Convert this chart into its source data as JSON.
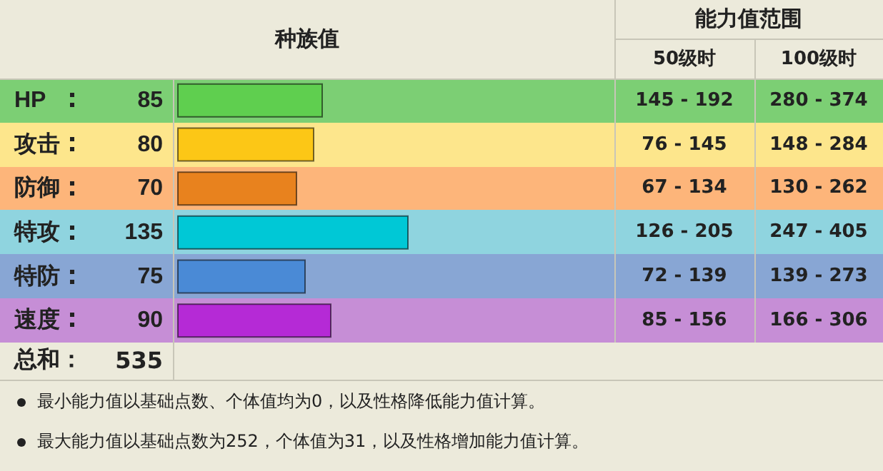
{
  "chart_data": {
    "type": "bar",
    "orientation": "horizontal",
    "title": "种族值",
    "categories": [
      "HP",
      "攻击",
      "防御",
      "特攻",
      "特防",
      "速度"
    ],
    "values": [
      85,
      80,
      70,
      135,
      75,
      90
    ],
    "colors": [
      "#5fcf4f",
      "#fcc716",
      "#e8821e",
      "#00c8d6",
      "#4a8ad6",
      "#b52ad6"
    ],
    "xlim": [
      0,
      255
    ],
    "tick_labels": "y",
    "data_labels": true,
    "grid": false,
    "annotations": [
      "能力值范围",
      "50级时",
      "100级时",
      "145 - 192",
      "280 - 374",
      "76 - 145",
      "148 - 284",
      "67 - 134",
      "130 - 262",
      "126 - 205",
      "247 - 405",
      "72 - 139",
      "139 - 273",
      "85 - 156",
      "166 - 306",
      "总和：",
      "535",
      "最小能力值以基础点数、个体值均为0，以及性格降低能力值计算。",
      "最大能力值以基础点数为252，个体值为31，以及性格增加能力值计算。"
    ]
  }
}
